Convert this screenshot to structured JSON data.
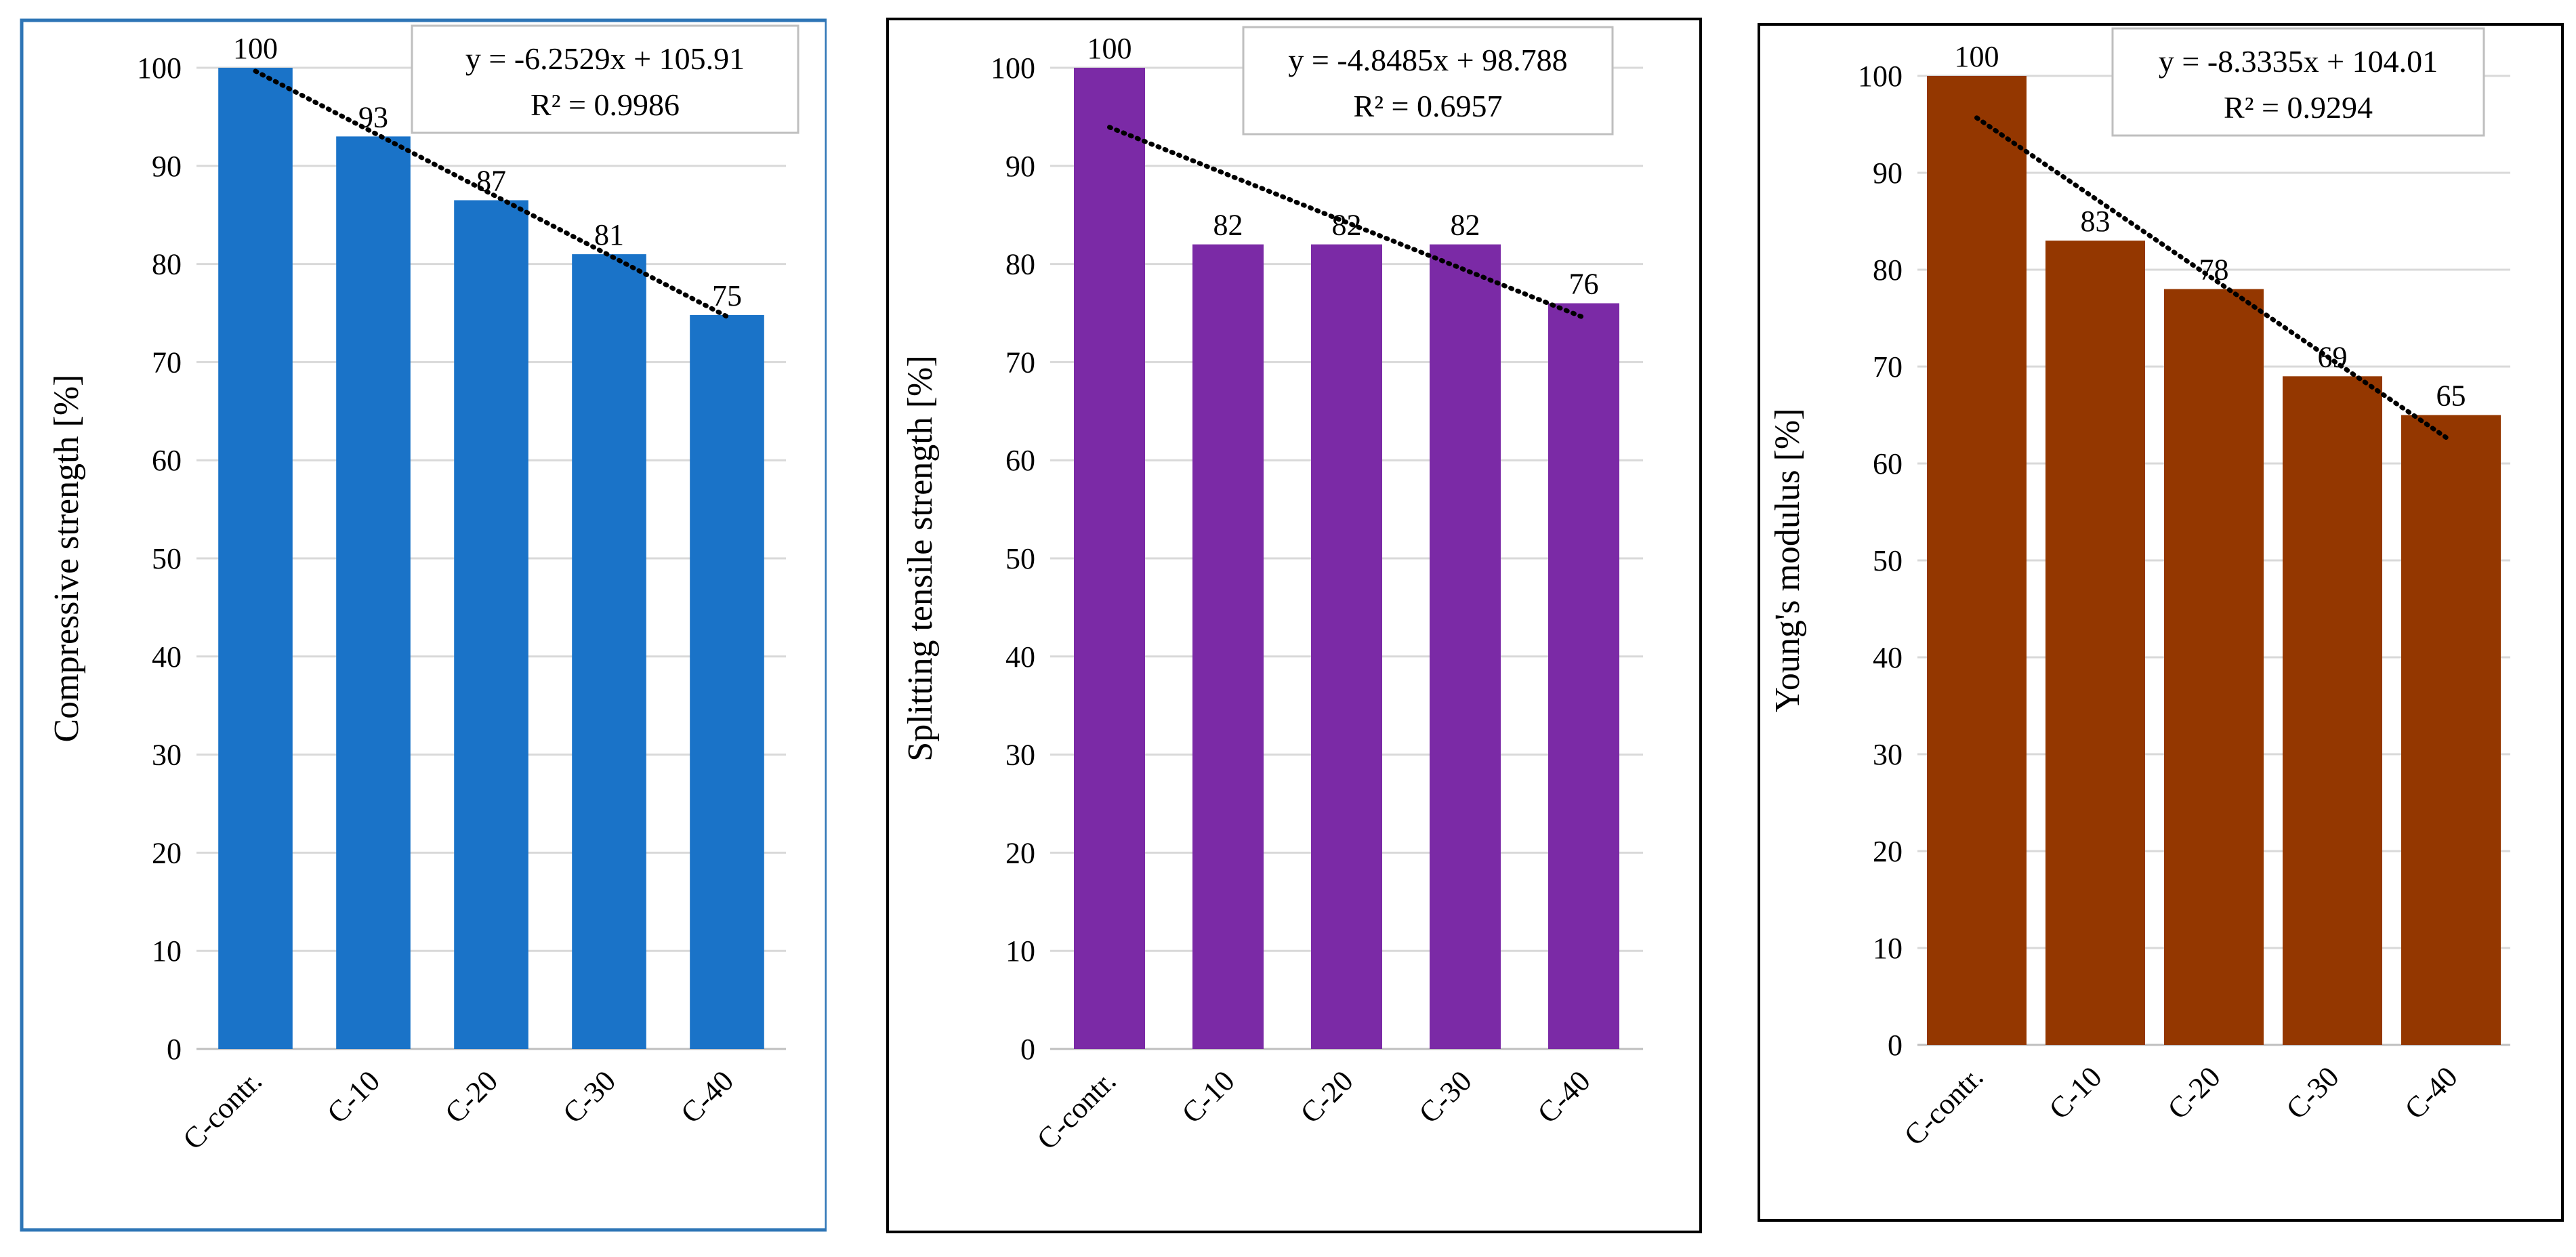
{
  "chart_data": [
    {
      "type": "bar",
      "categories": [
        "C-contr.",
        "C-10",
        "C-20",
        "C-30",
        "C-40"
      ],
      "values": [
        100,
        93,
        86.5,
        81,
        74.8
      ],
      "data_labels": [
        "100",
        "93",
        "87",
        "81",
        "75"
      ],
      "ylabel": "Compressive strength [%]",
      "ylim": [
        0,
        100
      ],
      "yticks": [
        0,
        10,
        20,
        30,
        40,
        50,
        60,
        70,
        80,
        90,
        100
      ],
      "grid": true,
      "bar_color": "#1a73c8",
      "frame_color": "#2e75b6",
      "trendline": {
        "slope": -6.2529,
        "intercept": 105.91,
        "equation": "y = -6.2529x + 105.91",
        "r2": "R² = 0.9986"
      }
    },
    {
      "type": "bar",
      "categories": [
        "C-contr.",
        "C-10",
        "C-20",
        "C-30",
        "C-40"
      ],
      "values": [
        100,
        82,
        82,
        82,
        76
      ],
      "data_labels": [
        "100",
        "82",
        "82",
        "82",
        "76"
      ],
      "ylabel": "Splitting tensile strength [%]",
      "ylim": [
        0,
        100
      ],
      "yticks": [
        0,
        10,
        20,
        30,
        40,
        50,
        60,
        70,
        80,
        90,
        100
      ],
      "grid": true,
      "bar_color": "#7b2aa6",
      "frame_color": "#000000",
      "trendline": {
        "slope": -4.8485,
        "intercept": 98.788,
        "equation": "y = -4.8485x + 98.788",
        "r2": "R² = 0.6957"
      }
    },
    {
      "type": "bar",
      "categories": [
        "C-contr.",
        "C-10",
        "C-20",
        "C-30",
        "C-40"
      ],
      "values": [
        100,
        83,
        78,
        69,
        65
      ],
      "data_labels": [
        "100",
        "83",
        "78",
        "69",
        "65"
      ],
      "ylabel": "Young's modulus [%]",
      "ylim": [
        0,
        100
      ],
      "yticks": [
        0,
        10,
        20,
        30,
        40,
        50,
        60,
        70,
        80,
        90,
        100
      ],
      "grid": true,
      "bar_color": "#943700",
      "frame_color": "#000000",
      "trendline": {
        "slope": -8.3335,
        "intercept": 104.01,
        "equation": "y = -8.3335x + 104.01",
        "r2": "R² = 0.9294"
      }
    }
  ]
}
